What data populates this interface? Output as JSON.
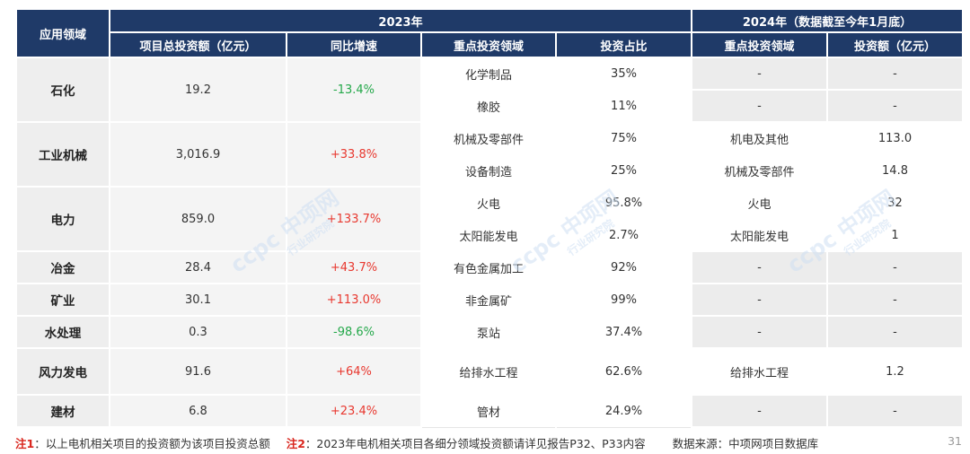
{
  "header": {
    "col_sector": "应用领域",
    "group_2023": "2023年",
    "group_2024": "2024年（数据截至今年1月底）",
    "col_total": "项目总投资额（亿元）",
    "col_growth": "同比增速",
    "col_focus_2023": "重点投资领域",
    "col_share": "投资占比",
    "col_focus_2024": "重点投资领域",
    "col_amount_2024": "投资额（亿元）"
  },
  "rows": [
    {
      "sector": "石化",
      "total": "19.2",
      "growth": "-13.4%",
      "growth_sign": "neg",
      "sub": [
        {
          "focus": "化学制品",
          "share": "35%",
          "focus24": "-",
          "amount24": "-"
        },
        {
          "focus": "橡胶",
          "share": "11%",
          "focus24": "-",
          "amount24": "-"
        }
      ]
    },
    {
      "sector": "工业机械",
      "total": "3,016.9",
      "growth": "+33.8%",
      "growth_sign": "pos",
      "sub": [
        {
          "focus": "机械及零部件",
          "share": "75%",
          "focus24": "机电及其他",
          "amount24": "113.0"
        },
        {
          "focus": "设备制造",
          "share": "25%",
          "focus24": "机械及零部件",
          "amount24": "14.8"
        }
      ]
    },
    {
      "sector": "电力",
      "total": "859.0",
      "growth": "+133.7%",
      "growth_sign": "pos",
      "sub": [
        {
          "focus": "火电",
          "share": "95.8%",
          "focus24": "火电",
          "amount24": "32"
        },
        {
          "focus": "太阳能发电",
          "share": "2.7%",
          "focus24": "太阳能发电",
          "amount24": "1"
        }
      ]
    },
    {
      "sector": "冶金",
      "total": "28.4",
      "growth": "+43.7%",
      "growth_sign": "pos",
      "sub": [
        {
          "focus": "有色金属加工",
          "share": "92%",
          "focus24": "-",
          "amount24": "-"
        }
      ]
    },
    {
      "sector": "矿业",
      "total": "30.1",
      "growth": "+113.0%",
      "growth_sign": "pos",
      "sub": [
        {
          "focus": "非金属矿",
          "share": "99%",
          "focus24": "-",
          "amount24": "-"
        }
      ]
    },
    {
      "sector": "水处理",
      "total": "0.3",
      "growth": "-98.6%",
      "growth_sign": "neg",
      "sub": [
        {
          "focus": "泵站",
          "share": "37.4%",
          "focus24": "-",
          "amount24": "-"
        }
      ]
    },
    {
      "sector": "风力发电",
      "total": "91.6",
      "growth": "+64%",
      "growth_sign": "pos",
      "sub": [
        {
          "focus": "给排水工程",
          "share": "62.6%",
          "focus24": "给排水工程",
          "amount24": "1.2"
        }
      ]
    },
    {
      "sector": "建材",
      "total": "6.8",
      "growth": "+23.4%",
      "growth_sign": "pos",
      "sub": [
        {
          "focus": "管材",
          "share": "24.9%",
          "focus24": "-",
          "amount24": "-"
        }
      ]
    }
  ],
  "footer": {
    "note1_label": "注1",
    "note1_text": "：以上电机相关项目的投资额为该项目投资总额",
    "note2_label": "注2",
    "note2_text": "：2023年电机相关项目各细分领域投资额请详见报告P32、P33内容",
    "source": "数据来源：中项网项目数据库",
    "page_number": "31"
  },
  "watermark": {
    "brand": "ccpc中项网",
    "sub": "行业研究院"
  },
  "colors": {
    "header_bg": "#1f3a68",
    "positive": "#e8382f",
    "negative": "#24a84a",
    "note_red": "#d9251d"
  }
}
